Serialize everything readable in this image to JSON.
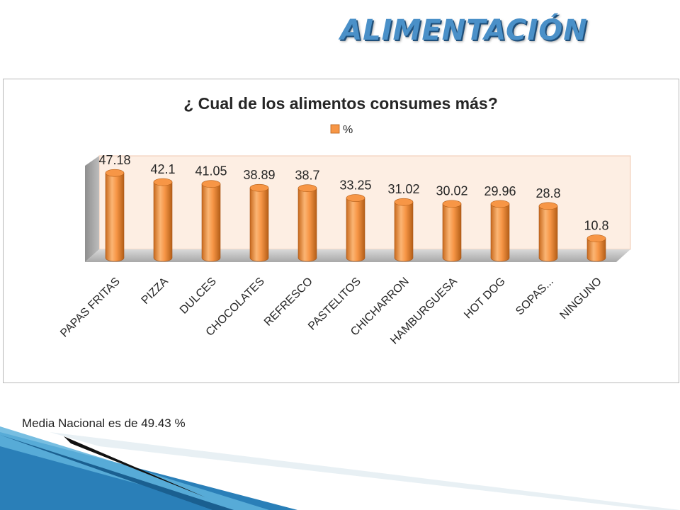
{
  "slide_title": "ALIMENTACIÓN",
  "footnote": "Media Nacional es de 49.43 %",
  "colors": {
    "bar": "#f79646",
    "bar_dark": "#c86a1e",
    "bar_light": "#fbc08a",
    "wall": "#fdeee3",
    "wall_border": "#f0c8b0",
    "title_blue": "#4a90c8"
  },
  "chart_data": {
    "type": "bar",
    "title": "¿ Cual de los alimentos consumes más?",
    "legend": {
      "position": "top",
      "entries": [
        "%"
      ]
    },
    "categories": [
      "PAPAS FRITAS",
      "PIZZA",
      "DULCES",
      "CHOCOLATES",
      "REFRESCO",
      "PASTELITOS",
      "CHICHARRON",
      "HAMBURGUESA",
      "HOT DOG",
      "SOPAS...",
      "NINGUNO"
    ],
    "series": [
      {
        "name": "%",
        "values": [
          47.18,
          42.1,
          41.05,
          38.89,
          38.7,
          33.25,
          31.02,
          30.02,
          29.96,
          28.8,
          10.8
        ]
      }
    ],
    "data_labels": [
      "47.18",
      "42.1",
      "41.05",
      "38.89",
      "38.7",
      "33.25",
      "31.02",
      "30.02",
      "29.96",
      "28.8",
      "10.8"
    ],
    "ylim": [
      0,
      50
    ],
    "grid": false,
    "style": "3d-cylinder"
  }
}
